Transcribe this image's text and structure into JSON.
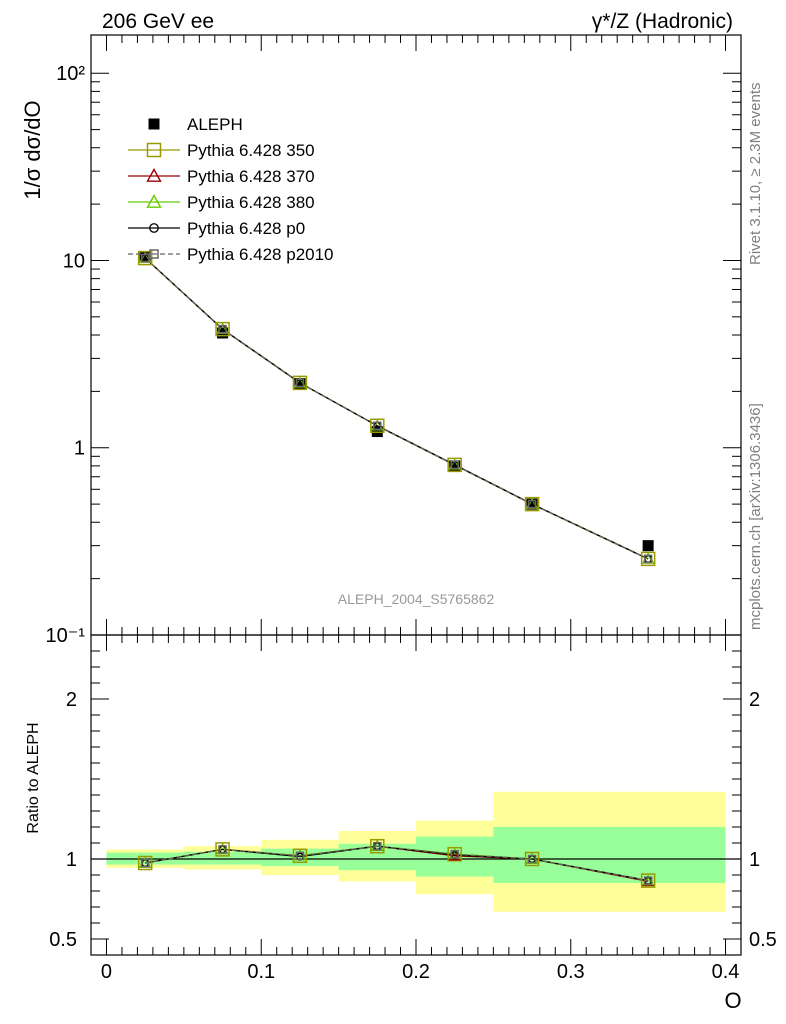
{
  "header": {
    "left": "206 GeV ee",
    "right": "γ*/Z (Hadronic)"
  },
  "side_labels": {
    "rivet": "Rivet 3.1.10, ≥ 2.3M events",
    "mcplots": "mcplots.cern.ch [arXiv:1306.3436]"
  },
  "watermark": "ALEPH_2004_S5765862",
  "colors": {
    "data": "#000000",
    "p350": "#999900",
    "p370": "#990000",
    "p380": "#66cc00",
    "p0": "#000000",
    "p2010": "#666666",
    "band_outer": "#ffff99",
    "band_inner": "#99ff99"
  },
  "chart_data": [
    {
      "type": "line",
      "panel": "main",
      "ylabel": "1/σ  dσ/dO",
      "yscale": "log",
      "ylim": [
        0.1,
        160
      ],
      "xlim": [
        -0.01,
        0.41
      ],
      "yticks": [
        {
          "value": 100,
          "label": "10²"
        },
        {
          "value": 10,
          "label": "10"
        },
        {
          "value": 1,
          "label": "1"
        },
        {
          "value": 0.1,
          "label": "10⁻¹"
        }
      ],
      "legend": [
        {
          "label": "ALEPH",
          "marker": "filled-square",
          "series": "data"
        },
        {
          "label": "Pythia 6.428 350",
          "marker": "open-square",
          "series": "p350"
        },
        {
          "label": "Pythia 6.428 370",
          "marker": "open-triangle",
          "series": "p370"
        },
        {
          "label": "Pythia 6.428 380",
          "marker": "open-triangle",
          "series": "p380"
        },
        {
          "label": "Pythia 6.428 p0",
          "marker": "open-circle",
          "series": "p0"
        },
        {
          "label": "Pythia 6.428 p2010",
          "marker": "open-square-dashed",
          "series": "p2010"
        }
      ],
      "x": [
        0.025,
        0.075,
        0.125,
        0.175,
        0.225,
        0.275,
        0.35
      ],
      "series": [
        {
          "name": "ALEPH",
          "key": "data",
          "values": [
            10.5,
            4.1,
            2.2,
            1.22,
            0.8,
            0.5,
            0.3
          ]
        },
        {
          "name": "Pythia 6.428 350",
          "key": "p350",
          "values": [
            10.3,
            4.3,
            2.22,
            1.31,
            0.81,
            0.5,
            0.255
          ]
        },
        {
          "name": "Pythia 6.428 370",
          "key": "p370",
          "values": [
            10.3,
            4.3,
            2.22,
            1.31,
            0.81,
            0.5,
            0.255
          ]
        },
        {
          "name": "Pythia 6.428 380",
          "key": "p380",
          "values": [
            10.3,
            4.3,
            2.22,
            1.31,
            0.81,
            0.5,
            0.255
          ]
        },
        {
          "name": "Pythia 6.428 p0",
          "key": "p0",
          "values": [
            10.3,
            4.3,
            2.22,
            1.31,
            0.81,
            0.5,
            0.255
          ]
        },
        {
          "name": "Pythia 6.428 p2010",
          "key": "p2010",
          "values": [
            10.3,
            4.3,
            2.22,
            1.31,
            0.81,
            0.5,
            0.255
          ]
        }
      ]
    },
    {
      "type": "line",
      "panel": "ratio",
      "ylabel": "Ratio to ALEPH",
      "xlabel": "O",
      "ylim": [
        0.4,
        2.4
      ],
      "xlim": [
        -0.01,
        0.41
      ],
      "yticks": [
        {
          "value": 2,
          "label": "2"
        },
        {
          "value": 1,
          "label": "1"
        },
        {
          "value": 0.5,
          "label": "0.5"
        }
      ],
      "xticks": [
        {
          "value": 0,
          "label": "0"
        },
        {
          "value": 0.1,
          "label": "0.1"
        },
        {
          "value": 0.2,
          "label": "0.2"
        },
        {
          "value": 0.3,
          "label": "0.3"
        },
        {
          "value": 0.4,
          "label": "0.4"
        }
      ],
      "bands": [
        {
          "x0": 0.0,
          "x1": 0.05,
          "outer": [
            0.945,
            1.06
          ],
          "inner": [
            0.965,
            1.04
          ]
        },
        {
          "x0": 0.05,
          "x1": 0.1,
          "outer": [
            0.935,
            1.08
          ],
          "inner": [
            0.965,
            1.045
          ]
        },
        {
          "x0": 0.1,
          "x1": 0.15,
          "outer": [
            0.9,
            1.12
          ],
          "inner": [
            0.955,
            1.065
          ]
        },
        {
          "x0": 0.15,
          "x1": 0.2,
          "outer": [
            0.86,
            1.175
          ],
          "inner": [
            0.93,
            1.095
          ]
        },
        {
          "x0": 0.2,
          "x1": 0.25,
          "outer": [
            0.78,
            1.24
          ],
          "inner": [
            0.89,
            1.14
          ]
        },
        {
          "x0": 0.25,
          "x1": 0.4,
          "outer": [
            0.67,
            1.42
          ],
          "inner": [
            0.85,
            1.2
          ]
        }
      ],
      "x": [
        0.025,
        0.075,
        0.125,
        0.175,
        0.225,
        0.275,
        0.35
      ],
      "series": [
        {
          "name": "Pythia 6.428 350",
          "key": "p350",
          "values": [
            0.975,
            1.06,
            1.02,
            1.08,
            1.03,
            1.0,
            0.865
          ]
        },
        {
          "name": "Pythia 6.428 370",
          "key": "p370",
          "values": [
            0.975,
            1.06,
            1.02,
            1.08,
            1.02,
            1.0,
            0.86
          ]
        },
        {
          "name": "Pythia 6.428 380",
          "key": "p380",
          "values": [
            0.975,
            1.06,
            1.02,
            1.08,
            1.03,
            1.0,
            0.865
          ]
        },
        {
          "name": "Pythia 6.428 p0",
          "key": "p0",
          "values": [
            0.975,
            1.06,
            1.015,
            1.08,
            1.025,
            1.0,
            0.865
          ]
        },
        {
          "name": "Pythia 6.428 p2010",
          "key": "p2010",
          "values": [
            0.975,
            1.06,
            1.02,
            1.08,
            1.03,
            1.0,
            0.865
          ]
        }
      ]
    }
  ]
}
